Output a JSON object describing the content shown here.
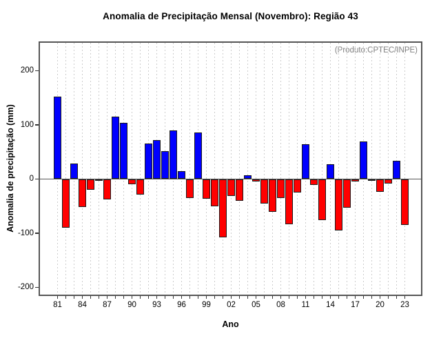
{
  "page": {
    "background": "#ffffff"
  },
  "chart_data": {
    "type": "bar",
    "title": "Anomalia de Precipitação Mensal (Novembro): Região 43",
    "xlabel": "Ano",
    "ylabel": "Anomalia de precipitação (mm)",
    "annotation": "(Produto:CPTEC/INPE)",
    "legend": "none",
    "grid": "vertical-dashed-per-year",
    "y_ticks": [
      200,
      100,
      0,
      -100,
      -200
    ],
    "ylim": [
      -215,
      252
    ],
    "x_tick_labels_shown": [
      "81",
      "84",
      "87",
      "90",
      "93",
      "96",
      "99",
      "02",
      "05",
      "08",
      "11",
      "14",
      "17",
      "20",
      "23"
    ],
    "x_label_every_n_years": 3,
    "years": [
      1981,
      1982,
      1983,
      1984,
      1985,
      1986,
      1987,
      1988,
      1989,
      1990,
      1991,
      1992,
      1993,
      1994,
      1995,
      1996,
      1997,
      1998,
      1999,
      2000,
      2001,
      2002,
      2003,
      2004,
      2005,
      2006,
      2007,
      2008,
      2009,
      2010,
      2011,
      2012,
      2013,
      2014,
      2015,
      2016,
      2017,
      2018,
      2019,
      2020,
      2021,
      2022,
      2023
    ],
    "values": [
      152,
      -90,
      29,
      -52,
      -20,
      -2,
      -38,
      115,
      104,
      -10,
      -29,
      65,
      72,
      51,
      90,
      15,
      -35,
      86,
      -36,
      -50,
      -108,
      -31,
      -40,
      7,
      -5,
      -45,
      -61,
      -35,
      -84,
      -25,
      64,
      -11,
      -76,
      27,
      -95,
      -53,
      -4,
      70,
      -1,
      -23,
      -8,
      34,
      -85
    ],
    "colors": {
      "positive_bar": "#0000ff",
      "negative_bar": "#ff0000",
      "bar_outline": "#1a1a1a",
      "gridline": "#cccccc",
      "zero_line": "#555555",
      "frame": "#555555",
      "tick": "#333333",
      "text": "#000000",
      "annotation_text": "#7f7f7f"
    }
  }
}
